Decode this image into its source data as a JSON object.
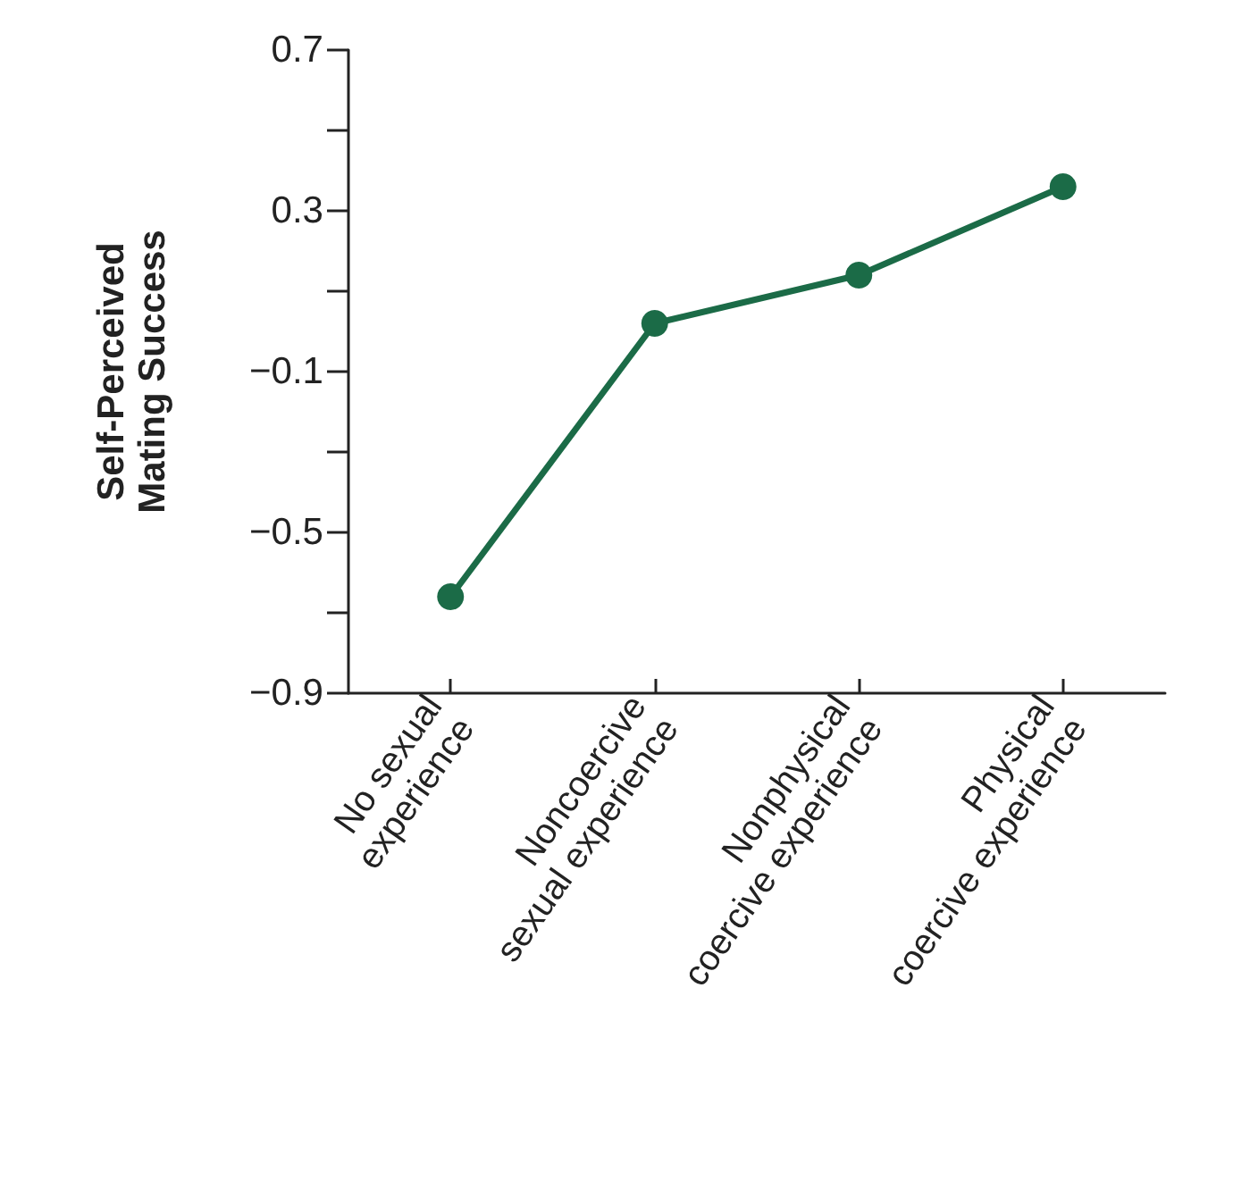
{
  "chart_data": {
    "type": "line",
    "ylabel": "Self-Perceived\nMating Success",
    "categories": [
      "No sexual\nexperience",
      "Noncoercive\nsexual experience",
      "Nonphysical\ncoercive experience",
      "Physical\ncoercive experience"
    ],
    "series": [
      {
        "color": "#1b6b47",
        "values": [
          -0.66,
          0.02,
          0.14,
          0.36
        ]
      }
    ],
    "ylim": [
      -0.9,
      0.7
    ],
    "yticks": [
      -0.9,
      {
        "value": -0.7,
        "label": null
      },
      -0.5,
      {
        "value": -0.3,
        "label": null
      },
      -0.1,
      {
        "value": 0.1,
        "label": null
      },
      0.3,
      {
        "value": 0.5,
        "label": null
      },
      0.7
    ],
    "grid": false,
    "marker": "circle",
    "line_style": "solid"
  }
}
